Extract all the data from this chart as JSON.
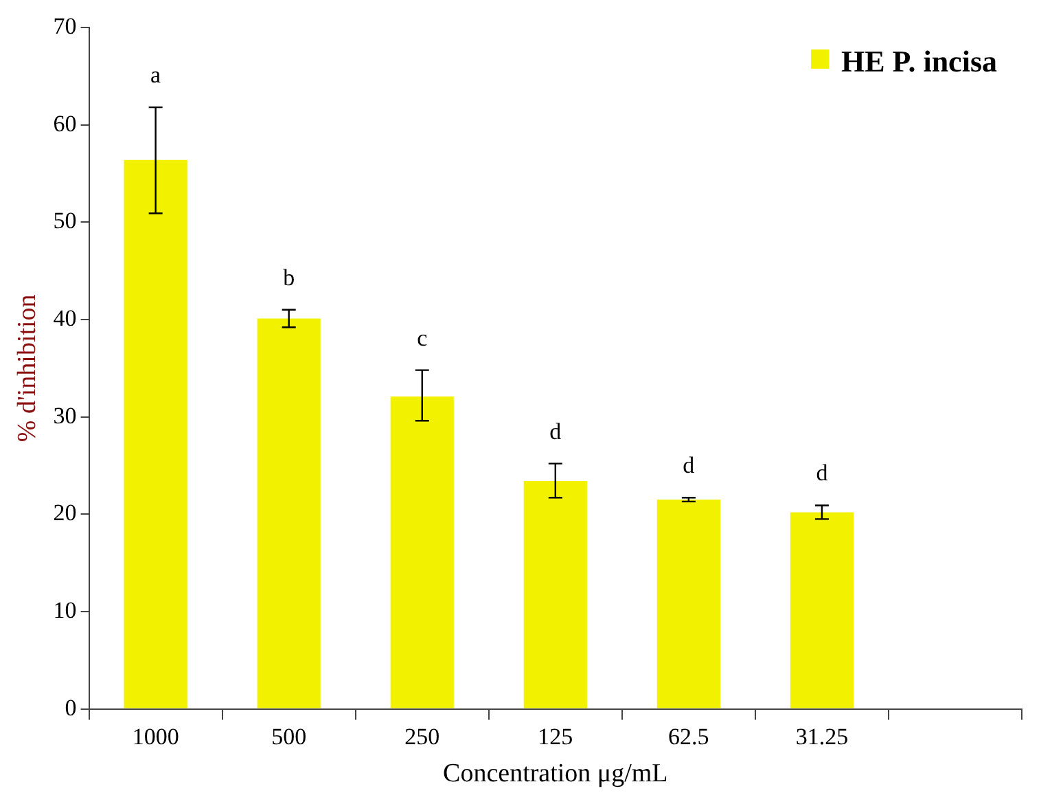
{
  "chart_data": {
    "type": "bar",
    "xlabel": "Concentration μg/mL",
    "ylabel": "% d'inhibition",
    "categories": [
      "1000",
      "500",
      "250",
      "125",
      "62.5",
      "31.25",
      null
    ],
    "series": [
      {
        "name": "HE P. incisa",
        "color": "#f2f200",
        "values": [
          56.4,
          40.1,
          32.1,
          23.4,
          21.5,
          20.2,
          null
        ],
        "errors": [
          [
            50.9,
            61.8
          ],
          [
            39.2,
            41.0
          ],
          [
            29.6,
            34.8
          ],
          [
            21.7,
            25.2
          ],
          [
            21.3,
            21.7
          ],
          [
            19.5,
            20.9
          ],
          null
        ]
      }
    ],
    "annotations": [
      {
        "text": "a",
        "x": "1000",
        "y": 61.8
      },
      {
        "text": "b",
        "x": "500",
        "y": 41.0
      },
      {
        "text": "c",
        "x": "250",
        "y": 34.8
      },
      {
        "text": "d",
        "x": "125",
        "y": 25.2
      },
      {
        "text": "d",
        "x": "62.5",
        "y": 21.7
      },
      {
        "text": "d",
        "x": "31.25",
        "y": 20.9
      }
    ],
    "ylim": [
      0,
      70
    ],
    "yticks": [
      0,
      10,
      20,
      30,
      40,
      50,
      60,
      70
    ],
    "grid": false,
    "legend": "top right"
  }
}
